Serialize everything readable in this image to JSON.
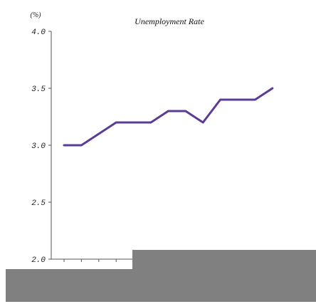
{
  "chart_data": {
    "type": "line",
    "title": "Unemployment Rate",
    "ylabel": "(%)",
    "xlabel": "",
    "ylim": [
      2.0,
      4.0
    ],
    "yticks": [
      "2.0",
      "2.5",
      "3.0",
      "3.5",
      "4.0"
    ],
    "grid": false,
    "series": [
      {
        "values": [
          3.0,
          3.0,
          3.1,
          3.2,
          3.2,
          3.2,
          3.3,
          3.3,
          3.2,
          3.4,
          3.4,
          3.4,
          3.5
        ],
        "color": "#5b3b96"
      }
    ]
  },
  "redactions": {
    "color": "#808080"
  }
}
